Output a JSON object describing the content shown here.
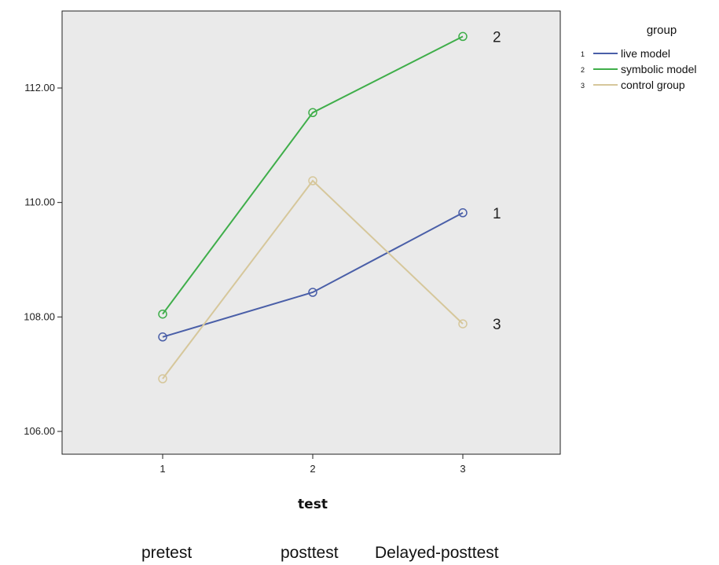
{
  "chart_data": {
    "type": "line",
    "x": [
      1,
      2,
      3
    ],
    "xlabel": "test",
    "ylabel": "",
    "ylim": [
      105.6,
      113.5
    ],
    "yticks": [
      106.0,
      108.0,
      110.0,
      112.0
    ],
    "ytick_labels": [
      "106.00",
      "108.00",
      "110.00",
      "112.00"
    ],
    "xtick_labels": [
      "1",
      "2",
      "3"
    ],
    "grid": false,
    "legend_title": "group",
    "legend_position": "top-right, outside plot",
    "series": [
      {
        "code": "1",
        "name": "live model",
        "values": [
          107.65,
          108.43,
          109.82
        ],
        "color": "#4a5fa8",
        "end_label": "1"
      },
      {
        "code": "2",
        "name": "symbolic model",
        "values": [
          108.05,
          111.57,
          112.9
        ],
        "color": "#3fae4a",
        "end_label": "2"
      },
      {
        "code": "3",
        "name": "control group",
        "values": [
          106.92,
          110.38,
          107.88
        ],
        "color": "#d6c79b",
        "end_label": "3"
      }
    ],
    "plot_background": "#eaeaea"
  },
  "captions": [
    "pretest",
    "posttest",
    "Delayed-posttest"
  ]
}
